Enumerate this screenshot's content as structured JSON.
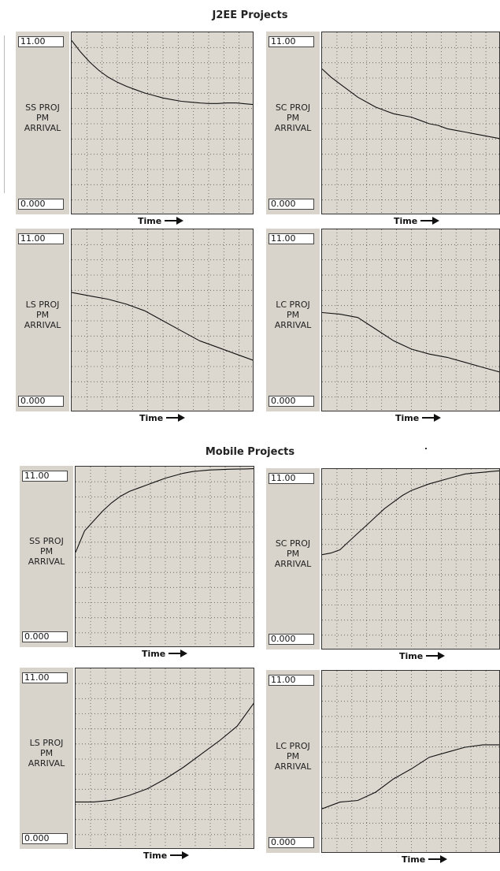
{
  "sections": [
    {
      "title": "J2EE Projects"
    },
    {
      "title": "Mobile Projects"
    }
  ],
  "axis": {
    "time_label": "Time"
  },
  "chart_data": [
    {
      "type": "line",
      "title": "",
      "ylabel": [
        "SS PROJ",
        "PM",
        "ARRIVAL"
      ],
      "xlabel": "Time",
      "ymax_label": "11.00",
      "ymin_label": "0.000",
      "ylim": [
        0,
        11
      ],
      "xlim": [
        0,
        10
      ],
      "grid": true,
      "x": [
        0,
        0.5,
        1,
        1.5,
        2,
        2.5,
        3,
        3.5,
        4,
        4.5,
        5,
        5.5,
        6,
        6.5,
        7,
        7.5,
        8,
        8.5,
        9,
        9.5,
        10
      ],
      "y": [
        10.5,
        9.8,
        9.2,
        8.7,
        8.3,
        8.0,
        7.75,
        7.55,
        7.35,
        7.2,
        7.05,
        6.95,
        6.85,
        6.8,
        6.75,
        6.72,
        6.72,
        6.75,
        6.75,
        6.7,
        6.65
      ]
    },
    {
      "type": "line",
      "title": "",
      "ylabel": [
        "SC PROJ",
        "PM",
        "ARRIVAL"
      ],
      "xlabel": "Time",
      "ymax_label": "11.00",
      "ymin_label": "0.000",
      "ylim": [
        0,
        11
      ],
      "xlim": [
        0,
        10
      ],
      "grid": true,
      "x": [
        0,
        0.5,
        1,
        1.5,
        2,
        2.5,
        3,
        3.5,
        4,
        4.5,
        5,
        5.5,
        6,
        6.5,
        7,
        7.5,
        8,
        8.5,
        9,
        9.5,
        10
      ],
      "y": [
        8.8,
        8.3,
        7.9,
        7.5,
        7.1,
        6.8,
        6.5,
        6.3,
        6.1,
        6.0,
        5.9,
        5.7,
        5.5,
        5.4,
        5.2,
        5.1,
        5.0,
        4.9,
        4.8,
        4.7,
        4.6
      ]
    },
    {
      "type": "line",
      "title": "",
      "ylabel": [
        "LS PROJ",
        "PM",
        "ARRIVAL"
      ],
      "xlabel": "Time",
      "ymax_label": "11.00",
      "ymin_label": "0.000",
      "ylim": [
        0,
        11
      ],
      "xlim": [
        0,
        10
      ],
      "grid": true,
      "x": [
        0,
        1,
        2,
        3,
        4,
        5,
        6,
        7,
        8,
        9,
        10
      ],
      "y": [
        7.2,
        7.0,
        6.8,
        6.5,
        6.1,
        5.5,
        4.9,
        4.3,
        3.9,
        3.5,
        3.1
      ]
    },
    {
      "type": "line",
      "title": "",
      "ylabel": [
        "LC PROJ",
        "PM",
        "ARRIVAL"
      ],
      "xlabel": "Time",
      "ymax_label": "11.00",
      "ymin_label": "0.000",
      "ylim": [
        0,
        11
      ],
      "xlim": [
        0,
        10
      ],
      "grid": true,
      "x": [
        0,
        1,
        2,
        3,
        4,
        5,
        6,
        7,
        8,
        9,
        10
      ],
      "y": [
        6.0,
        5.9,
        5.7,
        5.0,
        4.3,
        3.8,
        3.5,
        3.3,
        3.0,
        2.7,
        2.4
      ]
    },
    {
      "type": "line",
      "title": "",
      "ylabel": [
        "SS PROJ",
        "PM",
        "ARRIVAL"
      ],
      "xlabel": "Time",
      "ymax_label": "11.00",
      "ymin_label": "0.000",
      "ylim": [
        0,
        11
      ],
      "xlim": [
        0,
        10
      ],
      "grid": true,
      "x": [
        0,
        0.5,
        1,
        1.5,
        2,
        2.5,
        3,
        3.5,
        4,
        4.5,
        5,
        5.5,
        6,
        6.5,
        7,
        7.5,
        8,
        8.5,
        9,
        9.5,
        10
      ],
      "y": [
        5.8,
        7.1,
        7.7,
        8.3,
        8.8,
        9.2,
        9.5,
        9.7,
        9.9,
        10.1,
        10.3,
        10.45,
        10.6,
        10.7,
        10.75,
        10.8,
        10.82,
        10.84,
        10.85,
        10.86,
        10.88
      ]
    },
    {
      "type": "line",
      "title": "",
      "ylabel": [
        "SC PROJ",
        "PM",
        "ARRIVAL"
      ],
      "xlabel": "Time",
      "ymax_label": "11.00",
      "ymin_label": "0.000",
      "ylim": [
        0,
        11
      ],
      "xlim": [
        0,
        10
      ],
      "grid": true,
      "x": [
        0,
        0.5,
        1,
        1.5,
        2,
        2.5,
        3,
        3.5,
        4,
        4.5,
        5,
        5.5,
        6,
        6.5,
        7,
        7.5,
        8,
        8.5,
        9,
        9.5,
        10
      ],
      "y": [
        5.8,
        5.9,
        6.1,
        6.6,
        7.1,
        7.6,
        8.1,
        8.6,
        9.0,
        9.4,
        9.7,
        9.9,
        10.1,
        10.25,
        10.4,
        10.55,
        10.7,
        10.75,
        10.8,
        10.85,
        10.9
      ]
    },
    {
      "type": "line",
      "title": "",
      "ylabel": [
        "LS PROJ",
        "PM",
        "ARRIVAL"
      ],
      "xlabel": "Time",
      "ymax_label": "11.00",
      "ymin_label": "0.000",
      "ylim": [
        0,
        11
      ],
      "xlim": [
        0,
        10
      ],
      "grid": true,
      "x": [
        0,
        1,
        2,
        3,
        4,
        5,
        6,
        7,
        8,
        9,
        10
      ],
      "y": [
        2.9,
        2.9,
        3.0,
        3.3,
        3.7,
        4.3,
        5.0,
        5.8,
        6.6,
        7.5,
        9.0
      ]
    },
    {
      "type": "line",
      "title": "",
      "ylabel": [
        "LC PROJ",
        "PM",
        "ARRIVAL"
      ],
      "xlabel": "Time",
      "ymax_label": "11.00",
      "ymin_label": "0.000",
      "ylim": [
        0,
        11
      ],
      "xlim": [
        0,
        10
      ],
      "grid": true,
      "x": [
        0,
        1,
        2,
        3,
        4,
        5,
        6,
        7,
        8,
        9,
        10
      ],
      "y": [
        2.7,
        3.1,
        3.2,
        3.7,
        4.5,
        5.1,
        5.8,
        6.1,
        6.4,
        6.55,
        6.55
      ]
    }
  ]
}
